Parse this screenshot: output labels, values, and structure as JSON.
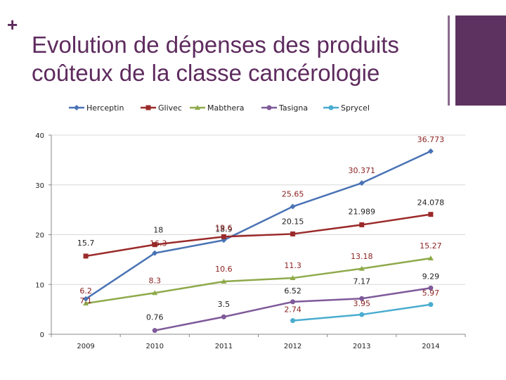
{
  "slide": {
    "plus": "+",
    "title": "Evolution de dépenses des produits coûteux de la classe cancérologie"
  },
  "chart_data": {
    "type": "line",
    "title": "Evolution de dépenses des produits coûteux de la classe cancérologie",
    "categories": [
      "2009",
      "2010",
      "2011",
      "2012",
      "2013",
      "2014"
    ],
    "ylim": [
      0,
      40
    ],
    "yticks": [
      "0",
      "10",
      "20",
      "30",
      "40"
    ],
    "grid": true,
    "legend_position": "top",
    "series": [
      {
        "name": "Herceptin",
        "color": "#4a73b5",
        "marker": "diamond",
        "values": [
          7.1,
          16.3,
          18.9,
          25.65,
          30.371,
          36.773
        ],
        "labels": [
          "7.1",
          "",
          "18.9",
          "25.65",
          "30.371",
          "36.773"
        ]
      },
      {
        "name": "Glivec",
        "color": "#9b2a2a",
        "marker": "square",
        "values": [
          15.7,
          18,
          19.6,
          20.15,
          21.989,
          24.078
        ],
        "labels": [
          "15.7",
          "18",
          "19.6",
          "20.15",
          "21.989",
          "24.078"
        ]
      },
      {
        "name": "Mabthera",
        "color": "#8faa4b",
        "marker": "triangle",
        "values": [
          6.2,
          8.3,
          10.6,
          11.3,
          13.18,
          15.27
        ],
        "labels": [
          "6.2",
          "8.3",
          "10.6",
          "11.3",
          "13.18",
          "15.27"
        ]
      },
      {
        "name": "Tasigna",
        "color": "#7f5a9a",
        "marker": "circle",
        "values": [
          null,
          0.76,
          3.5,
          6.52,
          7.17,
          9.29
        ],
        "labels": [
          "",
          "0.76",
          "3.5",
          "6.52",
          "7.17",
          "9.29"
        ]
      },
      {
        "name": "Sprycel",
        "color": "#4aaccf",
        "marker": "circle",
        "values": [
          null,
          null,
          null,
          2.74,
          3.95,
          5.97
        ],
        "labels": [
          "",
          "",
          "",
          "2.74",
          "3.95",
          "5.97"
        ]
      }
    ],
    "extra_labels": [
      {
        "category": "2010",
        "series": "Glivec",
        "text": "16.3"
      }
    ],
    "label_colors": {
      "dark_red": "#8c2222",
      "black": "#222222"
    }
  }
}
